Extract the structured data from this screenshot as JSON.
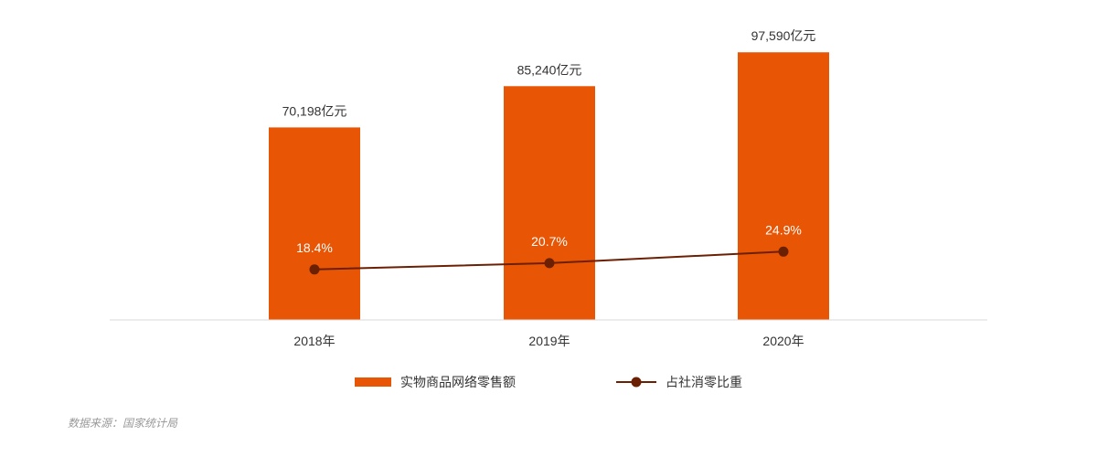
{
  "chart_data": {
    "type": "bar",
    "categories": [
      "2018年",
      "2019年",
      "2020年"
    ],
    "series": [
      {
        "name": "实物商品网络零售额",
        "type": "bar",
        "values": [
          70198,
          85240,
          97590
        ],
        "labels": [
          "70,198亿元",
          "85,240亿元",
          "97,590亿元"
        ],
        "color": "#E85504"
      },
      {
        "name": "占社消零比重",
        "type": "line",
        "values": [
          18.4,
          20.7,
          24.9
        ],
        "labels": [
          "18.4%",
          "20.7%",
          "24.9%"
        ],
        "color": "#6B2004"
      }
    ],
    "title": "",
    "xlabel": "",
    "ylabel": "",
    "ylim": [
      0,
      100000
    ],
    "ylim_secondary": [
      0,
      100
    ],
    "grid": false,
    "legend": "bottom-center",
    "colors": {
      "axis": "#d9d9d9"
    }
  },
  "source": {
    "text": "数据来源：国家统计局"
  }
}
